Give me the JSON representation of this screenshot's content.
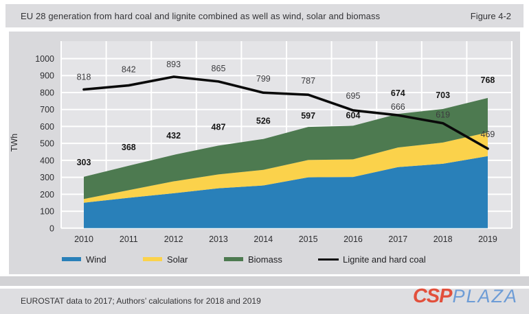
{
  "header": {
    "title": "EU 28 generation from hard coal and lignite combined as well as wind, solar and biomass",
    "figure_label": "Figure 4-2"
  },
  "chart_data": {
    "type": "area",
    "title": "EU 28 generation from hard coal and lignite combined as well as wind, solar and biomass",
    "xlabel": "",
    "ylabel": "TWh",
    "ylim": [
      0,
      1000
    ],
    "ytick_step": 100,
    "grid": true,
    "legend_position": "bottom",
    "categories": [
      "2010",
      "2011",
      "2012",
      "2013",
      "2014",
      "2015",
      "2016",
      "2017",
      "2018",
      "2019"
    ],
    "series": [
      {
        "name": "Wind",
        "type": "area",
        "color": "#2980b9",
        "values": [
          150,
          179,
          206,
          235,
          252,
          300,
          302,
          360,
          380,
          425
        ]
      },
      {
        "name": "Solar",
        "type": "area",
        "color": "#fbd24b",
        "values": [
          22,
          45,
          70,
          82,
          92,
          102,
          104,
          116,
          125,
          140
        ]
      },
      {
        "name": "Biomass",
        "type": "area",
        "color": "#4d7a50",
        "values": [
          131,
          144,
          156,
          170,
          182,
          195,
          198,
          198,
          198,
          203
        ]
      },
      {
        "name": "Lignite and hard coal",
        "type": "line",
        "color": "#0a0a0a",
        "values": [
          818,
          842,
          893,
          865,
          799,
          787,
          695,
          666,
          619,
          469
        ]
      }
    ],
    "stack_total_labels": [
      303,
      368,
      432,
      487,
      526,
      597,
      604,
      674,
      703,
      768
    ],
    "line_labels": [
      818,
      842,
      893,
      865,
      799,
      787,
      695,
      666,
      619,
      469
    ]
  },
  "footer": {
    "source": "EUROSTAT data to 2017; Authors’ calculations for 2018 and 2019",
    "logo_csp": "CSP",
    "logo_plaza": "PLAZA"
  }
}
